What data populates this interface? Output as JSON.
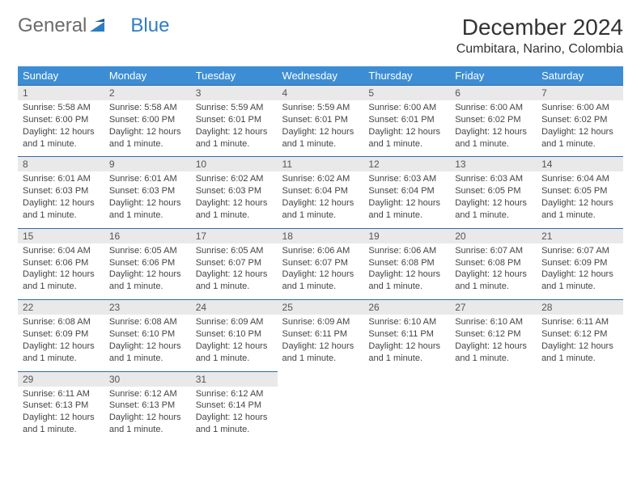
{
  "logo": {
    "text_general": "General",
    "text_blue": "Blue"
  },
  "title": "December 2024",
  "location": "Cumbitara, Narino, Colombia",
  "day_headers": [
    "Sunday",
    "Monday",
    "Tuesday",
    "Wednesday",
    "Thursday",
    "Friday",
    "Saturday"
  ],
  "colors": {
    "header_bg": "#3d8dd4",
    "header_text": "#ffffff",
    "daynum_bg": "#e9e9e9",
    "daynum_border": "#2d6ca8",
    "body_text": "#444444",
    "logo_grey": "#6b6b6b",
    "logo_blue": "#2d7dc4"
  },
  "typography": {
    "title_fontsize": 28,
    "location_fontsize": 16,
    "header_fontsize": 13,
    "daynum_fontsize": 12,
    "body_fontsize": 11
  },
  "weeks": [
    [
      {
        "num": "1",
        "sunrise": "Sunrise: 5:58 AM",
        "sunset": "Sunset: 6:00 PM",
        "day1": "Daylight: 12 hours",
        "day2": "and 1 minute."
      },
      {
        "num": "2",
        "sunrise": "Sunrise: 5:58 AM",
        "sunset": "Sunset: 6:00 PM",
        "day1": "Daylight: 12 hours",
        "day2": "and 1 minute."
      },
      {
        "num": "3",
        "sunrise": "Sunrise: 5:59 AM",
        "sunset": "Sunset: 6:01 PM",
        "day1": "Daylight: 12 hours",
        "day2": "and 1 minute."
      },
      {
        "num": "4",
        "sunrise": "Sunrise: 5:59 AM",
        "sunset": "Sunset: 6:01 PM",
        "day1": "Daylight: 12 hours",
        "day2": "and 1 minute."
      },
      {
        "num": "5",
        "sunrise": "Sunrise: 6:00 AM",
        "sunset": "Sunset: 6:01 PM",
        "day1": "Daylight: 12 hours",
        "day2": "and 1 minute."
      },
      {
        "num": "6",
        "sunrise": "Sunrise: 6:00 AM",
        "sunset": "Sunset: 6:02 PM",
        "day1": "Daylight: 12 hours",
        "day2": "and 1 minute."
      },
      {
        "num": "7",
        "sunrise": "Sunrise: 6:00 AM",
        "sunset": "Sunset: 6:02 PM",
        "day1": "Daylight: 12 hours",
        "day2": "and 1 minute."
      }
    ],
    [
      {
        "num": "8",
        "sunrise": "Sunrise: 6:01 AM",
        "sunset": "Sunset: 6:03 PM",
        "day1": "Daylight: 12 hours",
        "day2": "and 1 minute."
      },
      {
        "num": "9",
        "sunrise": "Sunrise: 6:01 AM",
        "sunset": "Sunset: 6:03 PM",
        "day1": "Daylight: 12 hours",
        "day2": "and 1 minute."
      },
      {
        "num": "10",
        "sunrise": "Sunrise: 6:02 AM",
        "sunset": "Sunset: 6:03 PM",
        "day1": "Daylight: 12 hours",
        "day2": "and 1 minute."
      },
      {
        "num": "11",
        "sunrise": "Sunrise: 6:02 AM",
        "sunset": "Sunset: 6:04 PM",
        "day1": "Daylight: 12 hours",
        "day2": "and 1 minute."
      },
      {
        "num": "12",
        "sunrise": "Sunrise: 6:03 AM",
        "sunset": "Sunset: 6:04 PM",
        "day1": "Daylight: 12 hours",
        "day2": "and 1 minute."
      },
      {
        "num": "13",
        "sunrise": "Sunrise: 6:03 AM",
        "sunset": "Sunset: 6:05 PM",
        "day1": "Daylight: 12 hours",
        "day2": "and 1 minute."
      },
      {
        "num": "14",
        "sunrise": "Sunrise: 6:04 AM",
        "sunset": "Sunset: 6:05 PM",
        "day1": "Daylight: 12 hours",
        "day2": "and 1 minute."
      }
    ],
    [
      {
        "num": "15",
        "sunrise": "Sunrise: 6:04 AM",
        "sunset": "Sunset: 6:06 PM",
        "day1": "Daylight: 12 hours",
        "day2": "and 1 minute."
      },
      {
        "num": "16",
        "sunrise": "Sunrise: 6:05 AM",
        "sunset": "Sunset: 6:06 PM",
        "day1": "Daylight: 12 hours",
        "day2": "and 1 minute."
      },
      {
        "num": "17",
        "sunrise": "Sunrise: 6:05 AM",
        "sunset": "Sunset: 6:07 PM",
        "day1": "Daylight: 12 hours",
        "day2": "and 1 minute."
      },
      {
        "num": "18",
        "sunrise": "Sunrise: 6:06 AM",
        "sunset": "Sunset: 6:07 PM",
        "day1": "Daylight: 12 hours",
        "day2": "and 1 minute."
      },
      {
        "num": "19",
        "sunrise": "Sunrise: 6:06 AM",
        "sunset": "Sunset: 6:08 PM",
        "day1": "Daylight: 12 hours",
        "day2": "and 1 minute."
      },
      {
        "num": "20",
        "sunrise": "Sunrise: 6:07 AM",
        "sunset": "Sunset: 6:08 PM",
        "day1": "Daylight: 12 hours",
        "day2": "and 1 minute."
      },
      {
        "num": "21",
        "sunrise": "Sunrise: 6:07 AM",
        "sunset": "Sunset: 6:09 PM",
        "day1": "Daylight: 12 hours",
        "day2": "and 1 minute."
      }
    ],
    [
      {
        "num": "22",
        "sunrise": "Sunrise: 6:08 AM",
        "sunset": "Sunset: 6:09 PM",
        "day1": "Daylight: 12 hours",
        "day2": "and 1 minute."
      },
      {
        "num": "23",
        "sunrise": "Sunrise: 6:08 AM",
        "sunset": "Sunset: 6:10 PM",
        "day1": "Daylight: 12 hours",
        "day2": "and 1 minute."
      },
      {
        "num": "24",
        "sunrise": "Sunrise: 6:09 AM",
        "sunset": "Sunset: 6:10 PM",
        "day1": "Daylight: 12 hours",
        "day2": "and 1 minute."
      },
      {
        "num": "25",
        "sunrise": "Sunrise: 6:09 AM",
        "sunset": "Sunset: 6:11 PM",
        "day1": "Daylight: 12 hours",
        "day2": "and 1 minute."
      },
      {
        "num": "26",
        "sunrise": "Sunrise: 6:10 AM",
        "sunset": "Sunset: 6:11 PM",
        "day1": "Daylight: 12 hours",
        "day2": "and 1 minute."
      },
      {
        "num": "27",
        "sunrise": "Sunrise: 6:10 AM",
        "sunset": "Sunset: 6:12 PM",
        "day1": "Daylight: 12 hours",
        "day2": "and 1 minute."
      },
      {
        "num": "28",
        "sunrise": "Sunrise: 6:11 AM",
        "sunset": "Sunset: 6:12 PM",
        "day1": "Daylight: 12 hours",
        "day2": "and 1 minute."
      }
    ],
    [
      {
        "num": "29",
        "sunrise": "Sunrise: 6:11 AM",
        "sunset": "Sunset: 6:13 PM",
        "day1": "Daylight: 12 hours",
        "day2": "and 1 minute."
      },
      {
        "num": "30",
        "sunrise": "Sunrise: 6:12 AM",
        "sunset": "Sunset: 6:13 PM",
        "day1": "Daylight: 12 hours",
        "day2": "and 1 minute."
      },
      {
        "num": "31",
        "sunrise": "Sunrise: 6:12 AM",
        "sunset": "Sunset: 6:14 PM",
        "day1": "Daylight: 12 hours",
        "day2": "and 1 minute."
      },
      null,
      null,
      null,
      null
    ]
  ]
}
